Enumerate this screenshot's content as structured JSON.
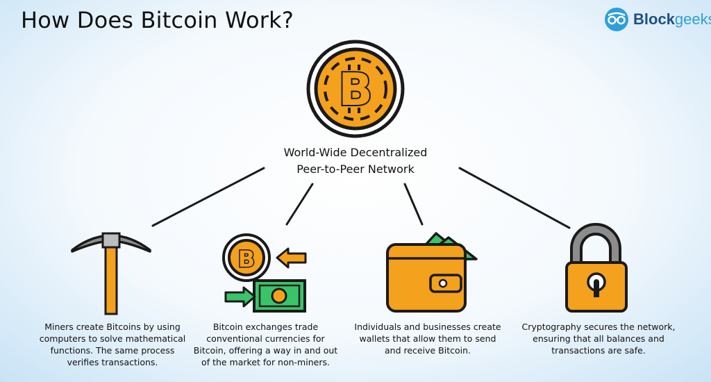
{
  "header": {
    "title": "How Does Bitcoin Work?"
  },
  "brand": {
    "name_part1": "Block",
    "name_part2": "geeks",
    "icon": "glasses-logo-icon"
  },
  "hub": {
    "label_line1": "World-Wide Decentralized",
    "label_line2": "Peer-to-Peer Network",
    "icon": "bitcoin-coin-icon"
  },
  "nodes": [
    {
      "icon": "pickaxe-icon",
      "text": "Miners create Bitcoins by using computers to solve mathematical functions. The same process verifies transactions."
    },
    {
      "icon": "exchange-icon",
      "text": "Bitcoin exchanges trade conventional currencies for Bitcoin, offering a way in and out of the market for non-miners."
    },
    {
      "icon": "wallet-icon",
      "text": "Individuals and businesses create wallets that allow them to send and receive Bitcoin."
    },
    {
      "icon": "padlock-icon",
      "text": "Cryptography secures the network, ensuring that all balances and transactions are safe."
    }
  ],
  "colors": {
    "orange": "#f4a11d",
    "green": "#39c46b",
    "dark": "#1a1a1a",
    "gray": "#8c8c8c",
    "brand_blue": "#2f9fd9"
  }
}
